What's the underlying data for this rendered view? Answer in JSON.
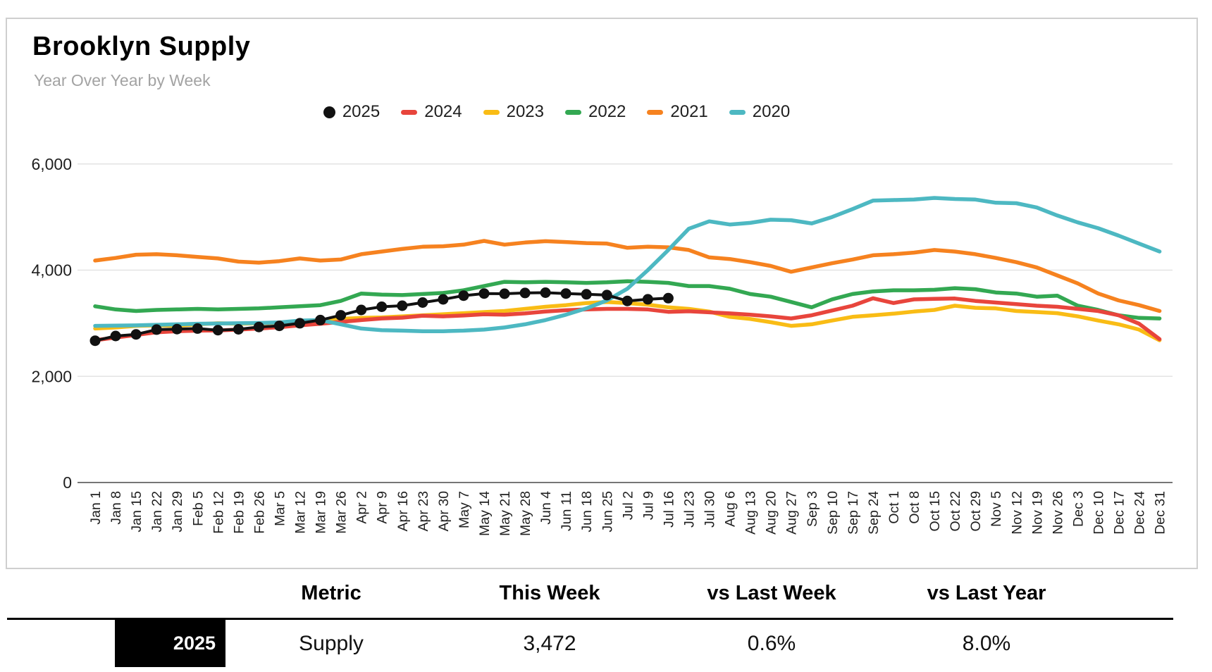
{
  "header": {
    "title": "Brooklyn Supply",
    "subtitle": "Year Over Year by Week"
  },
  "chart_data": {
    "type": "line",
    "title": "Brooklyn Supply",
    "subtitle": "Year Over Year by Week",
    "legend_position": "top",
    "grid": "horizontal",
    "ylim": [
      0,
      6400
    ],
    "y_ticks": [
      {
        "value": 0,
        "label": "0"
      },
      {
        "value": 2000,
        "label": "2,000"
      },
      {
        "value": 4000,
        "label": "4,000"
      },
      {
        "value": 6000,
        "label": "6,000"
      }
    ],
    "x_labels": [
      "Jan 1",
      "Jan 8",
      "Jan 15",
      "Jan 22",
      "Jan 29",
      "Feb 5",
      "Feb 12",
      "Feb 19",
      "Feb 26",
      "Mar 5",
      "Mar 12",
      "Mar 19",
      "Mar 26",
      "Apr 2",
      "Apr 9",
      "Apr 16",
      "Apr 23",
      "Apr 30",
      "May 7",
      "May 14",
      "May 21",
      "May 28",
      "Jun 4",
      "Jun 11",
      "Jun 18",
      "Jun 25",
      "Jul 2",
      "Jul 9",
      "Jul 16",
      "Jul 23",
      "Jul 30",
      "Aug 6",
      "Aug 13",
      "Aug 20",
      "Aug 27",
      "Sep 3",
      "Sep 10",
      "Sep 17",
      "Sep 24",
      "Oct 1",
      "Oct 8",
      "Oct 15",
      "Oct 22",
      "Oct 29",
      "Nov 5",
      "Nov 12",
      "Nov 19",
      "Nov 26",
      "Dec 3",
      "Dec 10",
      "Dec 17",
      "Dec 24",
      "Dec 31"
    ],
    "series": [
      {
        "name": "2025",
        "color": "#111111",
        "marker": "circle",
        "values": [
          2670,
          2760,
          2790,
          2880,
          2890,
          2900,
          2870,
          2885,
          2930,
          2950,
          3000,
          3060,
          3150,
          3250,
          3310,
          3330,
          3390,
          3450,
          3520,
          3560,
          3555,
          3570,
          3575,
          3560,
          3545,
          3530,
          3420,
          3451,
          3472
        ]
      },
      {
        "name": "2024",
        "color": "#E8453C",
        "marker": "dash",
        "values": [
          2680,
          2730,
          2780,
          2830,
          2850,
          2860,
          2865,
          2880,
          2900,
          2925,
          2960,
          2990,
          3025,
          3060,
          3090,
          3105,
          3140,
          3130,
          3145,
          3170,
          3160,
          3185,
          3220,
          3245,
          3260,
          3270,
          3270,
          3260,
          3215,
          3225,
          3205,
          3185,
          3160,
          3130,
          3090,
          3150,
          3240,
          3330,
          3470,
          3380,
          3450,
          3460,
          3465,
          3420,
          3390,
          3360,
          3330,
          3310,
          3270,
          3230,
          3150,
          2990,
          2700
        ]
      },
      {
        "name": "2023",
        "color": "#F9BC15",
        "marker": "dash",
        "values": [
          2900,
          2920,
          2950,
          2960,
          2950,
          2980,
          3000,
          2990,
          3000,
          3010,
          3030,
          3050,
          3080,
          3100,
          3110,
          3130,
          3150,
          3170,
          3190,
          3210,
          3230,
          3270,
          3310,
          3340,
          3380,
          3400,
          3380,
          3350,
          3300,
          3270,
          3220,
          3120,
          3080,
          3020,
          2950,
          2980,
          3050,
          3120,
          3150,
          3180,
          3220,
          3250,
          3330,
          3290,
          3280,
          3230,
          3210,
          3190,
          3130,
          3050,
          2980,
          2880,
          2680
        ]
      },
      {
        "name": "2022",
        "color": "#33A852",
        "marker": "dash",
        "values": [
          3320,
          3260,
          3230,
          3250,
          3260,
          3270,
          3260,
          3270,
          3280,
          3300,
          3320,
          3340,
          3420,
          3560,
          3540,
          3530,
          3550,
          3570,
          3620,
          3700,
          3780,
          3770,
          3780,
          3770,
          3760,
          3770,
          3790,
          3780,
          3760,
          3700,
          3700,
          3650,
          3550,
          3500,
          3400,
          3300,
          3450,
          3550,
          3600,
          3620,
          3620,
          3630,
          3660,
          3640,
          3580,
          3560,
          3500,
          3520,
          3330,
          3250,
          3150,
          3100,
          3090
        ]
      },
      {
        "name": "2021",
        "color": "#F6821F",
        "marker": "dash",
        "values": [
          4180,
          4230,
          4290,
          4300,
          4280,
          4250,
          4220,
          4160,
          4140,
          4170,
          4220,
          4180,
          4200,
          4300,
          4350,
          4400,
          4440,
          4450,
          4480,
          4550,
          4480,
          4520,
          4545,
          4530,
          4510,
          4500,
          4420,
          4440,
          4430,
          4380,
          4240,
          4210,
          4150,
          4080,
          3970,
          4050,
          4130,
          4200,
          4280,
          4300,
          4330,
          4380,
          4350,
          4300,
          4230,
          4150,
          4050,
          3900,
          3750,
          3560,
          3430,
          3340,
          3230
        ]
      },
      {
        "name": "2020",
        "color": "#4DB8C2",
        "marker": "dash",
        "values": [
          2950,
          2955,
          2960,
          2970,
          2980,
          2990,
          2995,
          3000,
          3005,
          3015,
          3050,
          3060,
          2980,
          2900,
          2870,
          2860,
          2850,
          2850,
          2860,
          2880,
          2920,
          2980,
          3060,
          3160,
          3280,
          3430,
          3650,
          4000,
          4380,
          4780,
          4920,
          4860,
          4890,
          4950,
          4940,
          4880,
          5000,
          5150,
          5310,
          5320,
          5330,
          5360,
          5340,
          5330,
          5270,
          5260,
          5180,
          5030,
          4900,
          4790,
          4650,
          4500,
          4350
        ]
      }
    ]
  },
  "summary_table": {
    "columns": [
      "Metric",
      "This Week",
      "vs Last Week",
      "vs Last Year"
    ],
    "rows": [
      {
        "year": "2025",
        "badge_color": "#000000",
        "metric": "Supply",
        "this_week": "3,472",
        "vs_last_week": "0.6%",
        "vs_last_year": "8.0%"
      }
    ]
  }
}
